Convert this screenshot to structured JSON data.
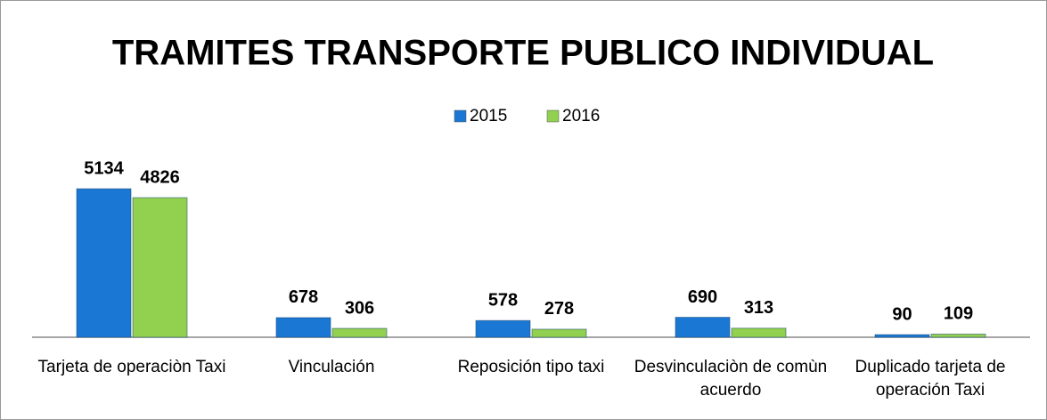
{
  "chart_data": {
    "type": "bar",
    "title": "TRAMITES TRANSPORTE PUBLICO INDIVIDUAL",
    "categories": [
      "Tarjeta de operaciòn Taxi",
      "Vinculación",
      "Reposición tipo taxi",
      "Desvinculaciòn de comùn acuerdo",
      "Duplicado tarjeta de operación Taxi"
    ],
    "series": [
      {
        "name": "2015",
        "color": "#1a78d4",
        "values": [
          5134,
          678,
          578,
          690,
          90
        ]
      },
      {
        "name": "2016",
        "color": "#92d050",
        "values": [
          4826,
          306,
          278,
          313,
          109
        ]
      }
    ],
    "ylim": [
      0,
      6000
    ],
    "legend": "top"
  }
}
